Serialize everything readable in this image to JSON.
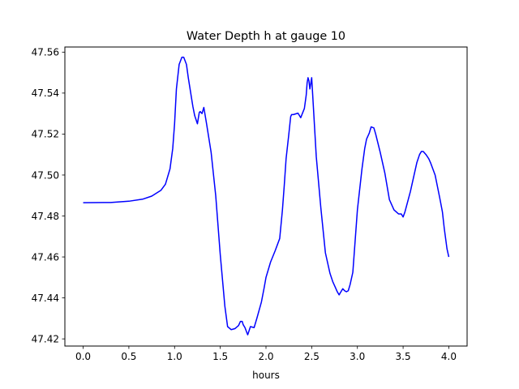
{
  "chart_data": {
    "type": "line",
    "title": "Water Depth h at gauge 10",
    "xlabel": "hours",
    "ylabel": "",
    "xlim": [
      -0.2,
      4.2
    ],
    "ylim": [
      47.4165,
      47.5625
    ],
    "grid": false,
    "legend": "none",
    "xticks": [
      0.0,
      0.5,
      1.0,
      1.5,
      2.0,
      2.5,
      3.0,
      3.5,
      4.0
    ],
    "xtick_labels": [
      "0.0",
      "0.5",
      "1.0",
      "1.5",
      "2.0",
      "2.5",
      "3.0",
      "3.5",
      "4.0"
    ],
    "yticks": [
      47.42,
      47.44,
      47.46,
      47.48,
      47.5,
      47.52,
      47.54,
      47.56
    ],
    "ytick_labels": [
      "47.42",
      "47.44",
      "47.46",
      "47.48",
      "47.50",
      "47.52",
      "47.54",
      "47.56"
    ],
    "series": [
      {
        "color": "#0000ff",
        "x": [
          0.0,
          0.3,
          0.5,
          0.65,
          0.75,
          0.85,
          0.9,
          0.95,
          0.98,
          1.0,
          1.02,
          1.05,
          1.08,
          1.1,
          1.13,
          1.15,
          1.2,
          1.22,
          1.25,
          1.27,
          1.28,
          1.3,
          1.32,
          1.35,
          1.4,
          1.45,
          1.5,
          1.55,
          1.58,
          1.62,
          1.66,
          1.7,
          1.72,
          1.74,
          1.75,
          1.77,
          1.8,
          1.83,
          1.87,
          1.9,
          1.95,
          1.98,
          2.0,
          2.05,
          2.1,
          2.15,
          2.18,
          2.2,
          2.22,
          2.25,
          2.27,
          2.28,
          2.3,
          2.35,
          2.38,
          2.42,
          2.44,
          2.45,
          2.46,
          2.47,
          2.48,
          2.5,
          2.55,
          2.6,
          2.65,
          2.7,
          2.73,
          2.75,
          2.78,
          2.8,
          2.82,
          2.84,
          2.86,
          2.88,
          2.9,
          2.92,
          2.95,
          3.0,
          3.05,
          3.08,
          3.1,
          3.13,
          3.15,
          3.18,
          3.2,
          3.25,
          3.3,
          3.35,
          3.4,
          3.45,
          3.48,
          3.5,
          3.52,
          3.55,
          3.58,
          3.6,
          3.62,
          3.65,
          3.68,
          3.7,
          3.72,
          3.75,
          3.78,
          3.8,
          3.85,
          3.9,
          3.93,
          3.95,
          3.98,
          4.0
        ],
        "y": [
          47.4865,
          47.4866,
          47.4872,
          47.4882,
          47.4897,
          47.4925,
          47.4955,
          47.503,
          47.513,
          47.525,
          47.542,
          47.554,
          47.5575,
          47.5575,
          47.554,
          47.5475,
          47.5335,
          47.529,
          47.525,
          47.5305,
          47.531,
          47.53,
          47.533,
          47.525,
          47.511,
          47.49,
          47.461,
          47.436,
          47.426,
          47.4245,
          47.425,
          47.4265,
          47.4285,
          47.4285,
          47.427,
          47.4255,
          47.422,
          47.426,
          47.4255,
          47.43,
          47.438,
          47.445,
          47.45,
          47.4575,
          47.463,
          47.469,
          47.483,
          47.495,
          47.508,
          47.52,
          47.5285,
          47.5295,
          47.5295,
          47.5302,
          47.528,
          47.5325,
          47.539,
          47.545,
          47.5475,
          47.546,
          47.542,
          47.5475,
          47.509,
          47.484,
          47.462,
          47.452,
          47.448,
          47.446,
          47.443,
          47.4415,
          47.443,
          47.4445,
          47.4435,
          47.443,
          47.4435,
          47.4465,
          47.4525,
          47.483,
          47.503,
          47.513,
          47.5175,
          47.5205,
          47.5235,
          47.523,
          47.52,
          47.511,
          47.501,
          47.488,
          47.483,
          47.481,
          47.481,
          47.4795,
          47.482,
          47.487,
          47.492,
          47.496,
          47.5,
          47.506,
          47.51,
          47.5115,
          47.5115,
          47.51,
          47.508,
          47.506,
          47.5,
          47.489,
          47.482,
          47.474,
          47.464,
          47.46
        ]
      }
    ]
  }
}
